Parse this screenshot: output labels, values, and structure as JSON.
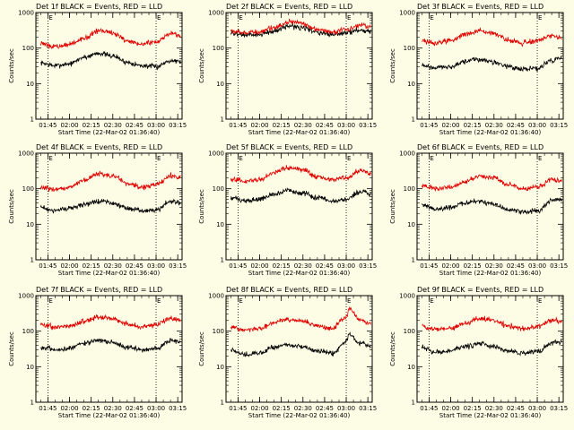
{
  "figure": {
    "background": "#fdfde6",
    "events_color": "#000000",
    "lld_color": "#e00000"
  },
  "chart_data": [
    {
      "type": "line",
      "title": "Det 1f BLACK = Events, RED = LLD",
      "xlabel": "Start Time (22-Mar-02 01:36:40)",
      "ylabel": "Counts/sec",
      "xlim": [
        "01:36:40",
        "03:18:00"
      ],
      "ylim": [
        1,
        1000
      ],
      "yscale": "log",
      "x_ticks": [
        "01:45",
        "02:00",
        "02:15",
        "02:30",
        "02:45",
        "03:00",
        "03:15"
      ],
      "y_ticks": [
        "1",
        "10",
        "100",
        "1000"
      ],
      "markers": [
        {
          "time": "01:45",
          "label": "E"
        },
        {
          "time": "03:00",
          "label": "E"
        }
      ],
      "x": [
        "01:40",
        "01:50",
        "02:00",
        "02:10",
        "02:20",
        "02:30",
        "02:40",
        "02:50",
        "03:00",
        "03:10",
        "03:17"
      ],
      "series": [
        {
          "name": "Events",
          "color": "#000000",
          "values": [
            38,
            32,
            36,
            55,
            72,
            60,
            40,
            32,
            30,
            45,
            42
          ]
        },
        {
          "name": "LLD",
          "color": "#e00000",
          "values": [
            130,
            110,
            125,
            190,
            300,
            270,
            160,
            130,
            150,
            260,
            220
          ]
        }
      ]
    },
    {
      "type": "line",
      "title": "Det 2f BLACK = Events, RED = LLD",
      "xlabel": "Start Time (22-Mar-02 01:36:40)",
      "ylabel": "Counts/sec",
      "xlim": [
        "01:36:40",
        "03:18:00"
      ],
      "ylim": [
        1,
        1000
      ],
      "yscale": "log",
      "x_ticks": [
        "01:45",
        "02:00",
        "02:15",
        "02:30",
        "02:45",
        "03:00",
        "03:15"
      ],
      "y_ticks": [
        "1",
        "10",
        "100",
        "1000"
      ],
      "markers": [
        {
          "time": "01:45",
          "label": "E"
        },
        {
          "time": "03:00",
          "label": "E"
        }
      ],
      "x": [
        "01:40",
        "01:50",
        "02:00",
        "02:10",
        "02:20",
        "02:30",
        "02:40",
        "02:50",
        "03:00",
        "03:10",
        "03:17"
      ],
      "series": [
        {
          "name": "Events",
          "color": "#000000",
          "values": [
            260,
            230,
            240,
            300,
            420,
            380,
            270,
            240,
            270,
            330,
            290
          ]
        },
        {
          "name": "LLD",
          "color": "#e00000",
          "values": [
            300,
            270,
            280,
            370,
            550,
            490,
            330,
            290,
            340,
            450,
            390
          ]
        }
      ]
    },
    {
      "type": "line",
      "title": "Det 3f BLACK = Events, RED = LLD",
      "xlabel": "Start Time (22-Mar-02 01:36:40)",
      "ylabel": "Counts/sec",
      "xlim": [
        "01:36:40",
        "03:18:00"
      ],
      "ylim": [
        1,
        1000
      ],
      "yscale": "log",
      "x_ticks": [
        "01:45",
        "02:00",
        "02:15",
        "02:30",
        "02:45",
        "03:00",
        "03:15"
      ],
      "y_ticks": [
        "1",
        "10",
        "100",
        "1000"
      ],
      "markers": [
        {
          "time": "01:45",
          "label": "E"
        },
        {
          "time": "03:00",
          "label": "E"
        }
      ],
      "x": [
        "01:40",
        "01:50",
        "02:00",
        "02:10",
        "02:20",
        "02:30",
        "02:40",
        "02:50",
        "03:00",
        "03:10",
        "03:17"
      ],
      "series": [
        {
          "name": "Events",
          "color": "#000000",
          "values": [
            32,
            28,
            30,
            42,
            48,
            40,
            30,
            26,
            26,
            45,
            55
          ]
        },
        {
          "name": "LLD",
          "color": "#e00000",
          "values": [
            160,
            140,
            160,
            240,
            300,
            250,
            170,
            140,
            160,
            220,
            190
          ]
        }
      ]
    },
    {
      "type": "line",
      "title": "Det 4f BLACK = Events, RED = LLD",
      "xlabel": "Start Time (22-Mar-02 01:36:40)",
      "ylabel": "Counts/sec",
      "xlim": [
        "01:36:40",
        "03:18:00"
      ],
      "ylim": [
        1,
        1000
      ],
      "yscale": "log",
      "x_ticks": [
        "01:45",
        "02:00",
        "02:15",
        "02:30",
        "02:45",
        "03:00",
        "03:15"
      ],
      "y_ticks": [
        "1",
        "10",
        "100",
        "1000"
      ],
      "markers": [
        {
          "time": "01:45",
          "label": "E"
        },
        {
          "time": "03:00",
          "label": "E"
        }
      ],
      "x": [
        "01:40",
        "01:50",
        "02:00",
        "02:10",
        "02:20",
        "02:30",
        "02:40",
        "02:50",
        "03:00",
        "03:10",
        "03:17"
      ],
      "series": [
        {
          "name": "Events",
          "color": "#000000",
          "values": [
            30,
            24,
            28,
            36,
            45,
            40,
            28,
            24,
            25,
            45,
            40
          ]
        },
        {
          "name": "LLD",
          "color": "#e00000",
          "values": [
            110,
            95,
            110,
            170,
            260,
            230,
            140,
            110,
            130,
            230,
            200
          ]
        }
      ]
    },
    {
      "type": "line",
      "title": "Det 5f BLACK = Events, RED = LLD",
      "xlabel": "Start Time (22-Mar-02 01:36:40)",
      "ylabel": "Counts/sec",
      "xlim": [
        "01:36:40",
        "03:18:00"
      ],
      "ylim": [
        1,
        1000
      ],
      "yscale": "log",
      "x_ticks": [
        "01:45",
        "02:00",
        "02:15",
        "02:30",
        "02:45",
        "03:00",
        "03:15"
      ],
      "y_ticks": [
        "1",
        "10",
        "100",
        "1000"
      ],
      "markers": [
        {
          "time": "01:45",
          "label": "E"
        },
        {
          "time": "03:00",
          "label": "E"
        }
      ],
      "x": [
        "01:40",
        "01:50",
        "02:00",
        "02:10",
        "02:20",
        "02:30",
        "02:40",
        "02:50",
        "03:00",
        "03:10",
        "03:17"
      ],
      "series": [
        {
          "name": "Events",
          "color": "#000000",
          "values": [
            55,
            45,
            50,
            70,
            90,
            75,
            55,
            45,
            50,
            85,
            70
          ]
        },
        {
          "name": "LLD",
          "color": "#e00000",
          "values": [
            190,
            160,
            180,
            280,
            400,
            340,
            220,
            180,
            200,
            330,
            270
          ]
        }
      ]
    },
    {
      "type": "line",
      "title": "Det 6f BLACK = Events, RED = LLD",
      "xlabel": "Start Time (22-Mar-02 01:36:40)",
      "ylabel": "Counts/sec",
      "xlim": [
        "01:36:40",
        "03:18:00"
      ],
      "ylim": [
        1,
        1000
      ],
      "yscale": "log",
      "x_ticks": [
        "01:45",
        "02:00",
        "02:15",
        "02:30",
        "02:45",
        "03:00",
        "03:15"
      ],
      "y_ticks": [
        "1",
        "10",
        "100",
        "1000"
      ],
      "markers": [
        {
          "time": "01:45",
          "label": "E"
        },
        {
          "time": "03:00",
          "label": "E"
        }
      ],
      "x": [
        "01:40",
        "01:50",
        "02:00",
        "02:10",
        "02:20",
        "02:30",
        "02:40",
        "02:50",
        "03:00",
        "03:10",
        "03:17"
      ],
      "series": [
        {
          "name": "Events",
          "color": "#000000",
          "values": [
            35,
            26,
            30,
            40,
            45,
            36,
            26,
            22,
            24,
            45,
            50
          ]
        },
        {
          "name": "LLD",
          "color": "#e00000",
          "values": [
            120,
            100,
            110,
            160,
            230,
            200,
            130,
            100,
            110,
            180,
            170
          ]
        }
      ]
    },
    {
      "type": "line",
      "title": "Det 7f BLACK = Events, RED = LLD",
      "xlabel": "Start Time (22-Mar-02 01:36:40)",
      "ylabel": "Counts/sec",
      "xlim": [
        "01:36:40",
        "03:18:00"
      ],
      "ylim": [
        1,
        1000
      ],
      "yscale": "log",
      "x_ticks": [
        "01:45",
        "02:00",
        "02:15",
        "02:30",
        "02:45",
        "03:00",
        "03:15"
      ],
      "y_ticks": [
        "1",
        "10",
        "100",
        "1000"
      ],
      "markers": [
        {
          "time": "01:45",
          "label": "E"
        },
        {
          "time": "03:00",
          "label": "E"
        }
      ],
      "x": [
        "01:40",
        "01:50",
        "02:00",
        "02:10",
        "02:20",
        "02:30",
        "02:40",
        "02:50",
        "03:00",
        "03:10",
        "03:17"
      ],
      "series": [
        {
          "name": "Events",
          "color": "#000000",
          "values": [
            35,
            30,
            33,
            45,
            55,
            48,
            36,
            30,
            33,
            55,
            48
          ]
        },
        {
          "name": "LLD",
          "color": "#e00000",
          "values": [
            150,
            130,
            140,
            190,
            250,
            220,
            160,
            130,
            150,
            230,
            200
          ]
        }
      ]
    },
    {
      "type": "line",
      "title": "Det 8f BLACK = Events, RED = LLD",
      "xlabel": "Start Time (22-Mar-02 01:36:40)",
      "ylabel": "Counts/sec",
      "xlim": [
        "01:36:40",
        "03:18:00"
      ],
      "ylim": [
        1,
        1000
      ],
      "yscale": "log",
      "x_ticks": [
        "01:45",
        "02:00",
        "02:15",
        "02:30",
        "02:45",
        "03:00",
        "03:15"
      ],
      "y_ticks": [
        "1",
        "10",
        "100",
        "1000"
      ],
      "markers": [
        {
          "time": "01:45",
          "label": "E"
        },
        {
          "time": "03:00",
          "label": "E"
        }
      ],
      "x": [
        "01:40",
        "01:50",
        "02:00",
        "02:10",
        "02:20",
        "02:30",
        "02:40",
        "02:50",
        "03:00",
        "03:02",
        "03:10",
        "03:17"
      ],
      "series": [
        {
          "name": "Events",
          "color": "#000000",
          "values": [
            30,
            22,
            25,
            35,
            42,
            36,
            28,
            24,
            50,
            80,
            45,
            38
          ]
        },
        {
          "name": "LLD",
          "color": "#e00000",
          "values": [
            130,
            110,
            120,
            170,
            220,
            190,
            140,
            120,
            250,
            420,
            200,
            160
          ]
        }
      ]
    },
    {
      "type": "line",
      "title": "Det 9f BLACK = Events, RED = LLD",
      "xlabel": "Start Time (22-Mar-02 01:36:40)",
      "ylabel": "Counts/sec",
      "xlim": [
        "01:36:40",
        "03:18:00"
      ],
      "ylim": [
        1,
        1000
      ],
      "yscale": "log",
      "x_ticks": [
        "01:45",
        "02:00",
        "02:15",
        "02:30",
        "02:45",
        "03:00",
        "03:15"
      ],
      "y_ticks": [
        "1",
        "10",
        "100",
        "1000"
      ],
      "markers": [
        {
          "time": "01:45",
          "label": "E"
        },
        {
          "time": "03:00",
          "label": "E"
        }
      ],
      "x": [
        "01:40",
        "01:50",
        "02:00",
        "02:10",
        "02:20",
        "02:30",
        "02:40",
        "02:50",
        "03:00",
        "03:10",
        "03:17"
      ],
      "series": [
        {
          "name": "Events",
          "color": "#000000",
          "values": [
            35,
            25,
            28,
            36,
            45,
            38,
            28,
            24,
            26,
            45,
            50
          ]
        },
        {
          "name": "LLD",
          "color": "#e00000",
          "values": [
            140,
            110,
            120,
            170,
            230,
            200,
            140,
            120,
            130,
            200,
            190
          ]
        }
      ]
    }
  ]
}
